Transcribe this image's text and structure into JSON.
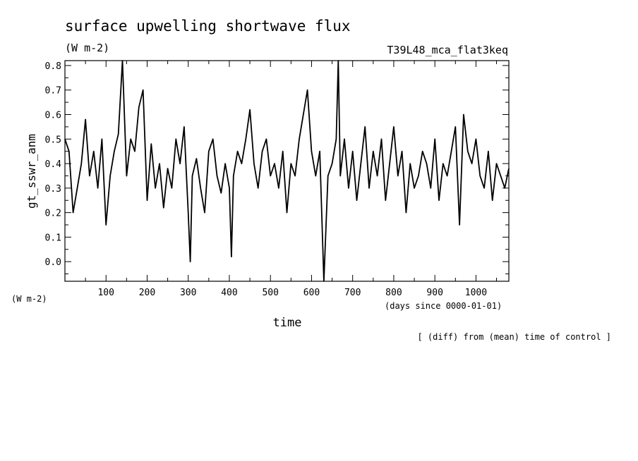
{
  "chart_data": {
    "type": "line",
    "title": "surface upwelling shortwave flux",
    "units": "(W m-2)",
    "experiment": "T39L48_mca_flat3keq",
    "ylabel": "gt_sswr_anm",
    "ylabel_units": "(W m-2)",
    "xlabel": "time",
    "xlabel_units": "(days since 0000-01-01)",
    "note": "[ (diff) from (mean) time of control ]",
    "x_ticks": [
      "100",
      "200",
      "300",
      "400",
      "500",
      "600",
      "700",
      "800",
      "900",
      "1000"
    ],
    "y_ticks": [
      "0.0",
      "0.1",
      "0.2",
      "0.3",
      "0.4",
      "0.5",
      "0.6",
      "0.7",
      "0.8"
    ],
    "xlim": [
      0,
      1080
    ],
    "ylim": [
      -0.08,
      0.82
    ],
    "grid": false,
    "series": [
      {
        "color": "#000000",
        "x": [
          0,
          10,
          20,
          30,
          40,
          50,
          60,
          70,
          80,
          90,
          100,
          110,
          120,
          130,
          140,
          150,
          160,
          170,
          180,
          190,
          200,
          210,
          220,
          230,
          240,
          250,
          260,
          270,
          280,
          290,
          300,
          305,
          310,
          320,
          330,
          340,
          350,
          360,
          370,
          380,
          390,
          400,
          405,
          410,
          420,
          430,
          440,
          450,
          460,
          470,
          480,
          490,
          500,
          510,
          520,
          530,
          540,
          550,
          560,
          570,
          580,
          590,
          600,
          610,
          620,
          630,
          640,
          650,
          660,
          665,
          670,
          680,
          690,
          700,
          710,
          720,
          730,
          740,
          750,
          760,
          770,
          780,
          790,
          800,
          810,
          820,
          830,
          840,
          850,
          860,
          870,
          880,
          890,
          900,
          910,
          920,
          930,
          940,
          950,
          960,
          970,
          980,
          990,
          1000,
          1010,
          1020,
          1030,
          1040,
          1050,
          1060,
          1070,
          1080
        ],
        "y": [
          0.5,
          0.45,
          0.2,
          0.3,
          0.4,
          0.58,
          0.35,
          0.45,
          0.3,
          0.5,
          0.15,
          0.35,
          0.45,
          0.52,
          0.82,
          0.35,
          0.5,
          0.45,
          0.63,
          0.7,
          0.25,
          0.48,
          0.3,
          0.4,
          0.22,
          0.38,
          0.3,
          0.5,
          0.4,
          0.55,
          0.2,
          0.0,
          0.35,
          0.42,
          0.3,
          0.2,
          0.45,
          0.5,
          0.35,
          0.28,
          0.4,
          0.3,
          0.02,
          0.35,
          0.45,
          0.4,
          0.5,
          0.62,
          0.4,
          0.3,
          0.45,
          0.5,
          0.35,
          0.4,
          0.3,
          0.45,
          0.2,
          0.4,
          0.35,
          0.5,
          0.6,
          0.7,
          0.45,
          0.35,
          0.45,
          -0.08,
          0.35,
          0.4,
          0.5,
          0.82,
          0.35,
          0.5,
          0.3,
          0.45,
          0.25,
          0.4,
          0.55,
          0.3,
          0.45,
          0.35,
          0.5,
          0.25,
          0.4,
          0.55,
          0.35,
          0.45,
          0.2,
          0.4,
          0.3,
          0.35,
          0.45,
          0.4,
          0.3,
          0.5,
          0.25,
          0.4,
          0.35,
          0.45,
          0.55,
          0.15,
          0.6,
          0.45,
          0.4,
          0.5,
          0.35,
          0.3,
          0.45,
          0.25,
          0.4,
          0.35,
          0.3,
          0.38
        ]
      }
    ]
  }
}
